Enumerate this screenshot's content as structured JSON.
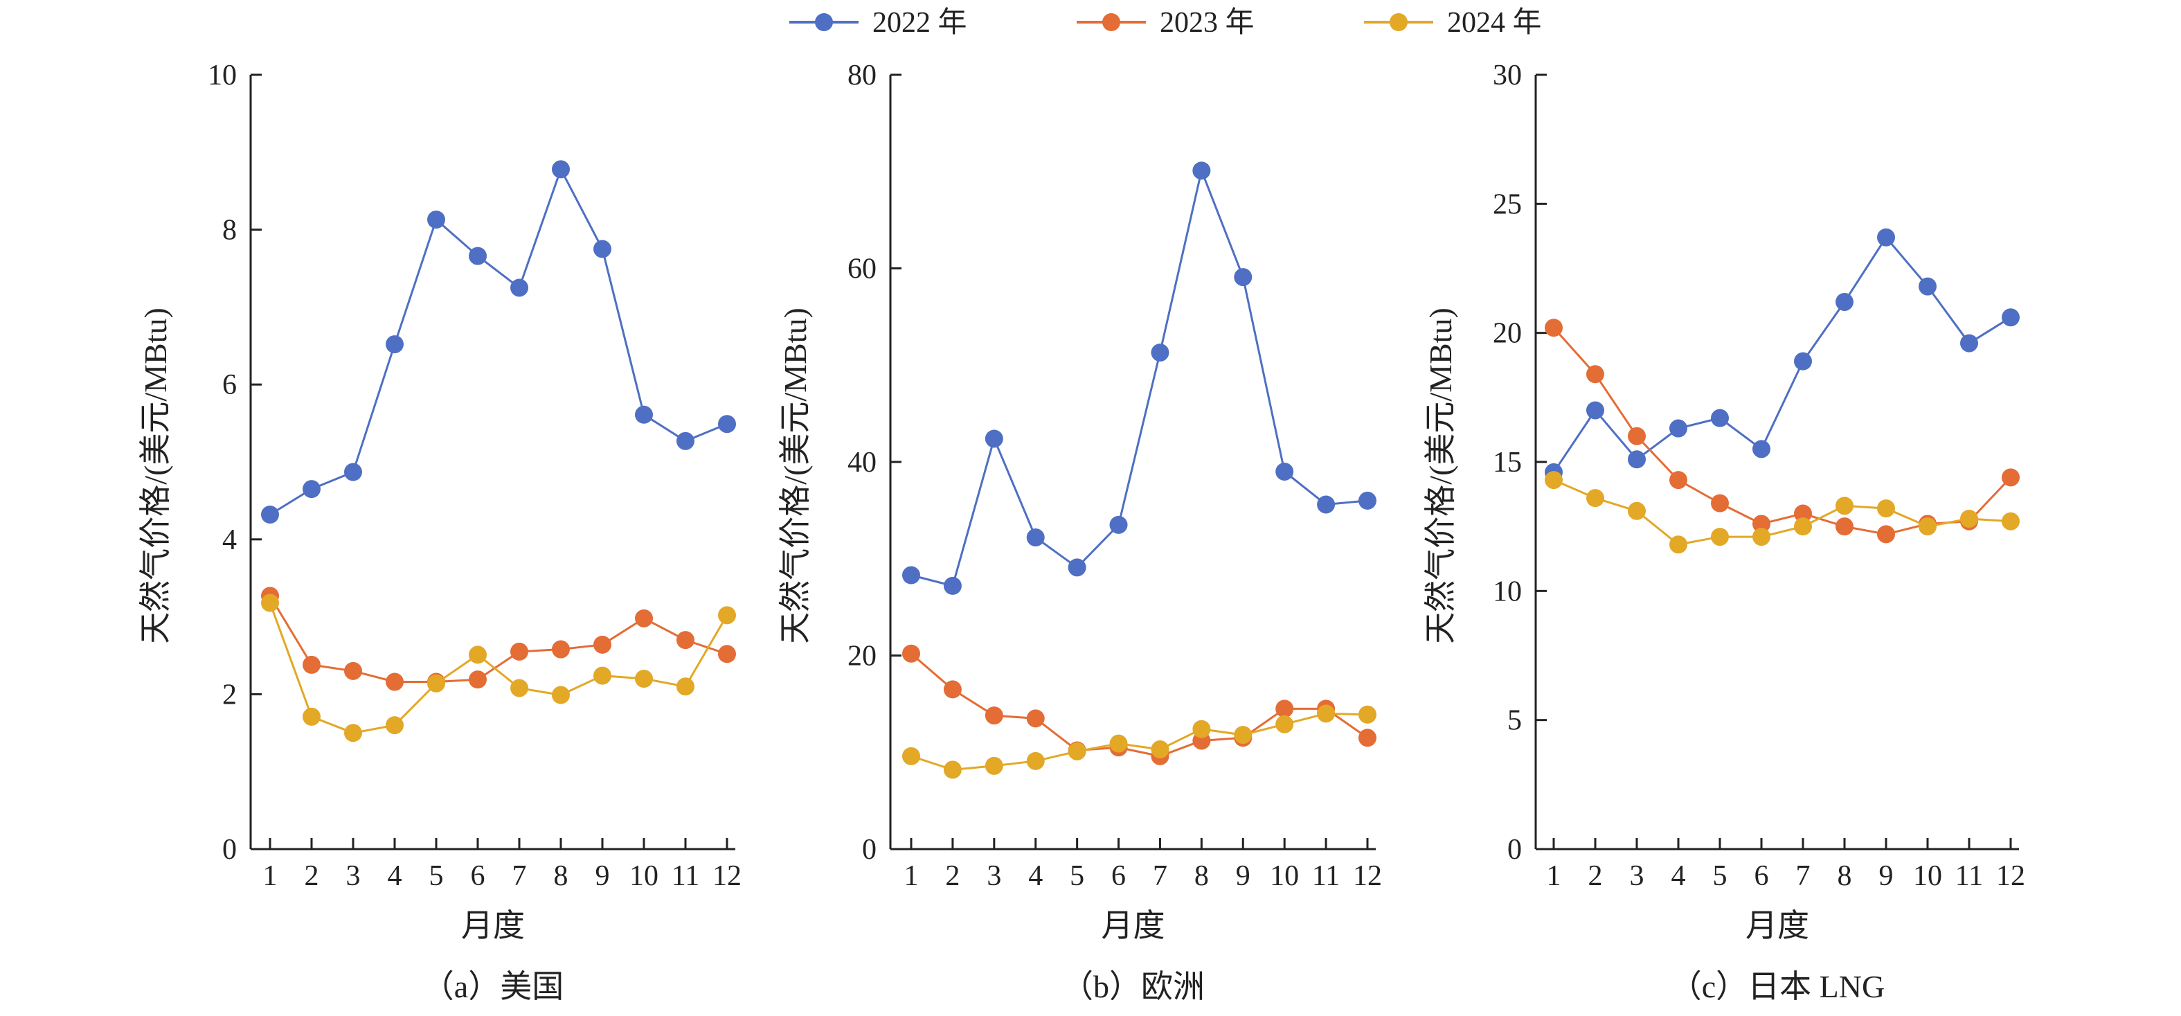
{
  "legend": {
    "position": "top-center",
    "items": [
      {
        "label": "2022 年",
        "color": "#4e6fc3"
      },
      {
        "label": "2023 年",
        "color": "#e46c35"
      },
      {
        "label": "2024 年",
        "color": "#e2a826"
      }
    ]
  },
  "chart_data": [
    {
      "type": "line",
      "caption": "（a）美国",
      "xlabel": "月度",
      "ylabel": "天然气价格/(美元/MBtu)",
      "x": [
        1,
        2,
        3,
        4,
        5,
        6,
        7,
        8,
        9,
        10,
        11,
        12
      ],
      "ylim": [
        0,
        10
      ],
      "yticks": [
        0,
        2,
        4,
        6,
        8,
        10
      ],
      "grid": false,
      "series": [
        {
          "name": "2022 年",
          "values": [
            4.32,
            4.65,
            4.87,
            6.52,
            8.13,
            7.66,
            7.25,
            8.78,
            7.75,
            5.61,
            5.27,
            5.49
          ]
        },
        {
          "name": "2023 年",
          "values": [
            3.27,
            2.38,
            2.3,
            2.16,
            2.16,
            2.19,
            2.55,
            2.58,
            2.64,
            2.98,
            2.7,
            2.52
          ]
        },
        {
          "name": "2024 年",
          "values": [
            3.18,
            1.71,
            1.5,
            1.6,
            2.14,
            2.51,
            2.08,
            1.99,
            2.24,
            2.2,
            2.1,
            3.02
          ]
        }
      ]
    },
    {
      "type": "line",
      "caption": "（b）欧洲",
      "xlabel": "月度",
      "ylabel": "天然气价格/(美元/MBtu)",
      "x": [
        1,
        2,
        3,
        4,
        5,
        6,
        7,
        8,
        9,
        10,
        11,
        12
      ],
      "ylim": [
        0,
        80
      ],
      "yticks": [
        0,
        20,
        40,
        60,
        80
      ],
      "grid": false,
      "series": [
        {
          "name": "2022 年",
          "values": [
            28.3,
            27.2,
            42.4,
            32.2,
            29.1,
            33.5,
            51.3,
            70.1,
            59.1,
            39.0,
            35.6,
            36.0
          ]
        },
        {
          "name": "2023 年",
          "values": [
            20.2,
            16.5,
            13.8,
            13.5,
            10.2,
            10.5,
            9.6,
            11.2,
            11.5,
            14.5,
            14.5,
            11.5
          ]
        },
        {
          "name": "2024 年",
          "values": [
            9.6,
            8.2,
            8.6,
            9.1,
            10.1,
            10.9,
            10.3,
            12.4,
            11.8,
            12.9,
            14.0,
            13.9
          ]
        }
      ]
    },
    {
      "type": "line",
      "caption": "（c）日本 LNG",
      "xlabel": "月度",
      "ylabel": "天然气价格/(美元/MBtu)",
      "x": [
        1,
        2,
        3,
        4,
        5,
        6,
        7,
        8,
        9,
        10,
        11,
        12
      ],
      "ylim": [
        0,
        30
      ],
      "yticks": [
        0,
        5,
        10,
        15,
        20,
        25,
        30
      ],
      "grid": false,
      "series": [
        {
          "name": "2022 年",
          "values": [
            14.6,
            17.0,
            15.1,
            16.3,
            16.7,
            15.5,
            18.9,
            21.2,
            23.7,
            21.8,
            19.6,
            20.6
          ]
        },
        {
          "name": "2023 年",
          "values": [
            20.2,
            18.4,
            16.0,
            14.3,
            13.4,
            12.6,
            13.0,
            12.5,
            12.2,
            12.6,
            12.7,
            14.4
          ]
        },
        {
          "name": "2024 年",
          "values": [
            14.3,
            13.6,
            13.1,
            11.8,
            12.1,
            12.1,
            12.5,
            13.3,
            13.2,
            12.5,
            12.8,
            12.7
          ]
        }
      ]
    }
  ]
}
